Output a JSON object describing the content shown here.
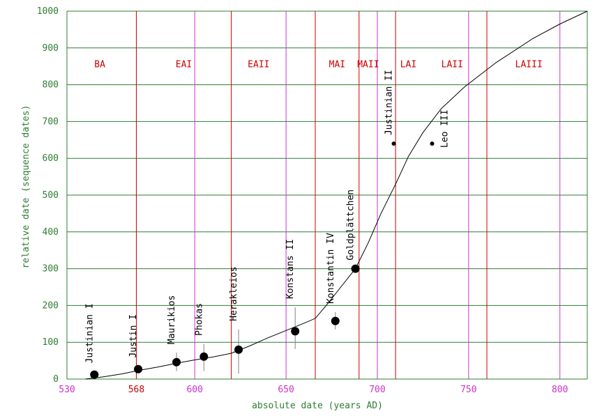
{
  "chart_data": {
    "type": "scatter",
    "xlabel": "absolute date (years AD)",
    "ylabel": "relative date (sequence dates)",
    "xlim": [
      530,
      815
    ],
    "ylim": [
      0,
      1000
    ],
    "grid": true,
    "yticks": [
      {
        "value": 0,
        "label": "0"
      },
      {
        "value": 100,
        "label": "100"
      },
      {
        "value": 200,
        "label": "200"
      },
      {
        "value": 300,
        "label": "300"
      },
      {
        "value": 400,
        "label": "400"
      },
      {
        "value": 500,
        "label": "500"
      },
      {
        "value": 600,
        "label": "600"
      },
      {
        "value": 700,
        "label": "700"
      },
      {
        "value": 800,
        "label": "800"
      },
      {
        "value": 900,
        "label": "900"
      },
      {
        "value": 1000,
        "label": "1000"
      }
    ],
    "xticks": [
      {
        "value": 530,
        "label": "530",
        "color": "#cc33cc"
      },
      {
        "value": 568,
        "label": "568",
        "color": "#cc0000"
      },
      {
        "value": 600,
        "label": "600",
        "color": "#cc33cc"
      },
      {
        "value": 650,
        "label": "650",
        "color": "#cc33cc"
      },
      {
        "value": 700,
        "label": "700",
        "color": "#cc33cc"
      },
      {
        "value": 750,
        "label": "750",
        "color": "#cc33cc"
      },
      {
        "value": 800,
        "label": "800",
        "color": "#cc33cc"
      }
    ],
    "phase_boundaries": [
      {
        "x": 568,
        "color": "#cc0000"
      },
      {
        "x": 600,
        "color": "#cc33cc"
      },
      {
        "x": 620,
        "color": "#cc0000"
      },
      {
        "x": 650,
        "color": "#cc33cc"
      },
      {
        "x": 666,
        "color": "#cc0000"
      },
      {
        "x": 690,
        "color": "#cc0000"
      },
      {
        "x": 700,
        "color": "#cc33cc"
      },
      {
        "x": 710,
        "color": "#cc0000"
      },
      {
        "x": 750,
        "color": "#cc33cc"
      },
      {
        "x": 760,
        "color": "#cc0000"
      },
      {
        "x": 800,
        "color": "#cc33cc"
      }
    ],
    "phases": [
      {
        "label": "BA",
        "x": 548
      },
      {
        "label": "EAI",
        "x": 594
      },
      {
        "label": "EAII",
        "x": 635
      },
      {
        "label": "MAI",
        "x": 678
      },
      {
        "label": "MAII",
        "x": 695
      },
      {
        "label": "LAI",
        "x": 717
      },
      {
        "label": "LAII",
        "x": 741
      },
      {
        "label": "LAIII",
        "x": 783
      }
    ],
    "phase_label_y": 855,
    "curve": {
      "x": [
        540,
        550,
        560,
        570,
        580,
        590,
        600,
        610,
        620,
        630,
        640,
        650,
        660,
        666,
        672,
        680,
        688,
        695,
        702,
        710,
        717,
        725,
        735,
        748,
        765,
        785,
        800,
        815
      ],
      "y": [
        0,
        6,
        14,
        24,
        33,
        43,
        52,
        60,
        70,
        90,
        112,
        132,
        152,
        165,
        200,
        250,
        300,
        370,
        450,
        530,
        605,
        670,
        735,
        795,
        860,
        925,
        965,
        1000
      ]
    },
    "points": [
      {
        "name": "Justinian I",
        "x": 545,
        "y": 12,
        "range": [
          5,
          20
        ],
        "large": true
      },
      {
        "name": "Justin I",
        "x": 569,
        "y": 27,
        "range": [
          18,
          35
        ],
        "large": true
      },
      {
        "name": "Maurikios",
        "x": 590,
        "y": 46,
        "range": [
          22,
          72
        ],
        "large": true
      },
      {
        "name": "Phokas",
        "x": 605,
        "y": 61,
        "range": [
          22,
          95
        ],
        "large": true
      },
      {
        "name": "Herakleios",
        "x": 624,
        "y": 80,
        "range": [
          15,
          135
        ],
        "large": true
      },
      {
        "name": "Konstans II",
        "x": 655,
        "y": 130,
        "range": [
          82,
          195
        ],
        "large": true
      },
      {
        "name": "Konstantin IV",
        "x": 677,
        "y": 158,
        "range": [
          135,
          182
        ],
        "large": true
      },
      {
        "name": "Goldplättchen",
        "x": 688,
        "y": 300,
        "range": null,
        "large": true
      },
      {
        "name": "Justinian II",
        "x": 709,
        "y": 640,
        "range": null,
        "large": false
      },
      {
        "name": "Leo III",
        "x": 730,
        "y": 640,
        "range": null,
        "large": false
      }
    ]
  }
}
